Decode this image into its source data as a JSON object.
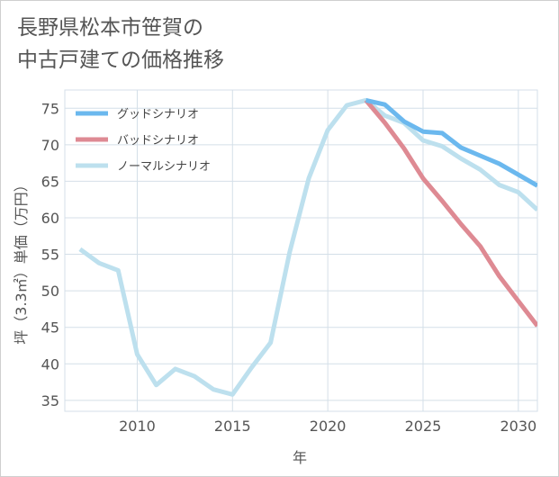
{
  "colors": {
    "good": "#6bb8ee",
    "bad": "#de8a93",
    "normal": "#bde0ee",
    "grid": "#d4dfe8",
    "axis_text": "#555555"
  },
  "chart_data": {
    "type": "line",
    "title": "長野県松本市笹賀の\n中古戸建ての価格推移",
    "xlabel": "年",
    "ylabel": "坪（3.3㎡）単価（万円）",
    "xlim": [
      2006.2,
      2031
    ],
    "ylim": [
      33.5,
      77.5
    ],
    "xticks": [
      2010,
      2015,
      2020,
      2025,
      2030
    ],
    "yticks": [
      35,
      40,
      45,
      50,
      55,
      60,
      65,
      70,
      75
    ],
    "grid": true,
    "legend_position": "top-left",
    "series": [
      {
        "name": "グッドシナリオ",
        "color_key": "good",
        "points": [
          [
            2022,
            76.1
          ],
          [
            2023,
            75.5
          ],
          [
            2024,
            73.2
          ],
          [
            2025,
            71.8
          ],
          [
            2026,
            71.6
          ],
          [
            2027,
            69.6
          ],
          [
            2028,
            68.5
          ],
          [
            2029,
            67.4
          ],
          [
            2030,
            65.9
          ],
          [
            2031,
            64.4
          ]
        ]
      },
      {
        "name": "バッドシナリオ",
        "color_key": "bad",
        "points": [
          [
            2022,
            76.1
          ],
          [
            2023,
            73.0
          ],
          [
            2024,
            69.5
          ],
          [
            2025,
            65.4
          ],
          [
            2026,
            62.3
          ],
          [
            2027,
            59.1
          ],
          [
            2028,
            56.1
          ],
          [
            2029,
            52.0
          ],
          [
            2030,
            48.6
          ],
          [
            2031,
            45.2
          ]
        ]
      },
      {
        "name": "ノーマルシナリオ",
        "color_key": "normal",
        "points": [
          [
            2007,
            55.7
          ],
          [
            2008,
            53.8
          ],
          [
            2009,
            52.8
          ],
          [
            2010,
            41.3
          ],
          [
            2011,
            37.1
          ],
          [
            2012,
            39.3
          ],
          [
            2013,
            38.3
          ],
          [
            2014,
            36.5
          ],
          [
            2015,
            35.8
          ],
          [
            2016,
            39.5
          ],
          [
            2017,
            42.9
          ],
          [
            2018,
            55.3
          ],
          [
            2019,
            65.4
          ],
          [
            2020,
            72.0
          ],
          [
            2021,
            75.4
          ],
          [
            2022,
            76.1
          ],
          [
            2023,
            74.0
          ],
          [
            2024,
            73.0
          ],
          [
            2025,
            70.6
          ],
          [
            2026,
            69.8
          ],
          [
            2027,
            68.1
          ],
          [
            2028,
            66.6
          ],
          [
            2029,
            64.5
          ],
          [
            2030,
            63.5
          ],
          [
            2031,
            61.1
          ]
        ]
      }
    ]
  }
}
